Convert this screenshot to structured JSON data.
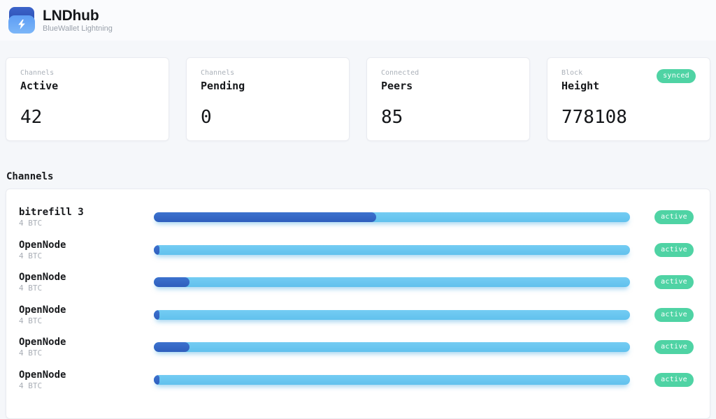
{
  "header": {
    "app_title": "LNDhub",
    "app_subtitle": "BlueWallet Lightning"
  },
  "stats": [
    {
      "label_top": "Channels",
      "label_bottom": "Active",
      "value": "42",
      "badge": ""
    },
    {
      "label_top": "Channels",
      "label_bottom": "Pending",
      "value": "0",
      "badge": ""
    },
    {
      "label_top": "Connected",
      "label_bottom": "Peers",
      "value": "85",
      "badge": ""
    },
    {
      "label_top": "Block",
      "label_bottom": "Height",
      "value": "778108",
      "badge": "synced"
    }
  ],
  "channels": {
    "section_title": "Channels",
    "rows": [
      {
        "name": "bitrefill 3",
        "amount": "4 BTC",
        "fill_percent": 46.7,
        "status": "active"
      },
      {
        "name": "OpenNode",
        "amount": "4 BTC",
        "fill_percent": 1.2,
        "status": "active"
      },
      {
        "name": "OpenNode",
        "amount": "4 BTC",
        "fill_percent": 7.5,
        "status": "active"
      },
      {
        "name": "OpenNode",
        "amount": "4 BTC",
        "fill_percent": 1.2,
        "status": "active"
      },
      {
        "name": "OpenNode",
        "amount": "4 BTC",
        "fill_percent": 7.5,
        "status": "active"
      },
      {
        "name": "OpenNode",
        "amount": "4 BTC",
        "fill_percent": 1.2,
        "status": "active"
      }
    ]
  },
  "colors": {
    "page_background": "#f5f7fa",
    "progress_track": "#69c7f0",
    "progress_fill": "#3566c4",
    "badge_green": "#4fd3a4",
    "logo_dark_blue": "#2f55b8",
    "logo_light_blue": "#6aa9f6"
  }
}
